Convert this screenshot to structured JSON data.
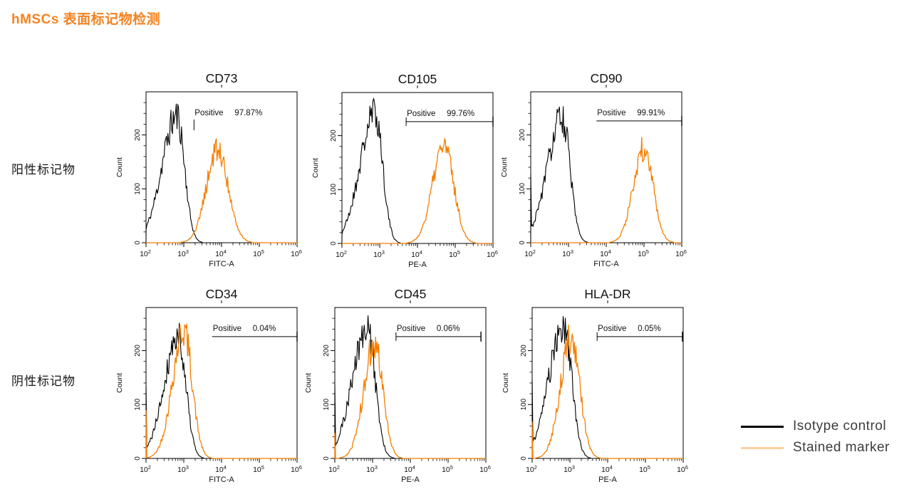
{
  "page_title": "hMSCs 表面标记物检测",
  "row_labels": {
    "positive": "阳性标记物",
    "negative": "阴性标记物"
  },
  "legend": {
    "items": [
      {
        "label": "Isotype control",
        "color": "#000000"
      },
      {
        "label": "Stained marker",
        "color": "#ffd0a1"
      }
    ]
  },
  "colors": {
    "title_orange": "#f58220",
    "curve_orange": "#f57e00",
    "axis": "#000000"
  },
  "chart_data": [
    {
      "type": "line",
      "row": "positive",
      "title": "CD73",
      "xlabel": "FITC-A",
      "ylabel": "Count",
      "x_log_range": [
        2,
        6
      ],
      "x_tick_labels": [
        "10^2",
        "10^3",
        "10^4",
        "10^5",
        "10^6"
      ],
      "ylim": [
        0,
        280
      ],
      "yticks": [
        0,
        100,
        200
      ],
      "annotation": {
        "label": "Positive",
        "value": "97.87%"
      },
      "gate": {
        "from_log10": 3.27,
        "to_log10": 6.0,
        "count_y": 226,
        "line": false,
        "left_tick": true,
        "right_tick": false
      },
      "series": [
        {
          "name": "Isotype control",
          "color": "#000000",
          "peak_log10": 2.82,
          "sigma_left": 0.4,
          "sigma_right": 0.2,
          "peak_height": 235,
          "edge_spike": 24,
          "seed": 11
        },
        {
          "name": "Stained marker",
          "color": "#f57e00",
          "peak_log10": 3.9,
          "sigma_left": 0.3,
          "sigma_right": 0.28,
          "peak_height": 172,
          "edge_spike": 0,
          "seed": 12
        }
      ]
    },
    {
      "type": "line",
      "row": "positive",
      "title": "CD105",
      "xlabel": "PE-A",
      "ylabel": "Count",
      "x_log_range": [
        2,
        6
      ],
      "x_tick_labels": [
        "10^2",
        "10^3",
        "10^4",
        "10^5",
        "10^6"
      ],
      "ylim": [
        0,
        280
      ],
      "yticks": [
        0,
        100,
        200
      ],
      "annotation": {
        "label": "Positive",
        "value": "99.76%"
      },
      "gate": {
        "from_log10": 3.7,
        "to_log10": 6.0,
        "count_y": 226,
        "line": true,
        "left_tick": true,
        "right_tick": true
      },
      "series": [
        {
          "name": "Isotype control",
          "color": "#000000",
          "peak_log10": 2.88,
          "sigma_left": 0.4,
          "sigma_right": 0.2,
          "peak_height": 242,
          "edge_spike": 16,
          "seed": 21
        },
        {
          "name": "Stained marker",
          "color": "#f57e00",
          "peak_log10": 4.7,
          "sigma_left": 0.3,
          "sigma_right": 0.26,
          "peak_height": 182,
          "edge_spike": 0,
          "seed": 22
        }
      ]
    },
    {
      "type": "line",
      "row": "positive",
      "title": "CD90",
      "xlabel": "FITC-A",
      "ylabel": "Count",
      "x_log_range": [
        2,
        6
      ],
      "x_tick_labels": [
        "10^2",
        "10^3",
        "10^4",
        "10^5",
        "10^6"
      ],
      "ylim": [
        0,
        280
      ],
      "yticks": [
        0,
        100,
        200
      ],
      "annotation": {
        "label": "Positive",
        "value": "99.91%"
      },
      "gate": {
        "from_log10": 3.74,
        "to_log10": 6.0,
        "count_y": 226,
        "line": true,
        "left_tick": false,
        "right_tick": true
      },
      "series": [
        {
          "name": "Isotype control",
          "color": "#000000",
          "peak_log10": 2.84,
          "sigma_left": 0.4,
          "sigma_right": 0.2,
          "peak_height": 232,
          "edge_spike": 125,
          "seed": 31
        },
        {
          "name": "Stained marker",
          "color": "#f57e00",
          "peak_log10": 5.0,
          "sigma_left": 0.28,
          "sigma_right": 0.24,
          "peak_height": 176,
          "edge_spike": 0,
          "seed": 32
        }
      ]
    },
    {
      "type": "line",
      "row": "negative",
      "title": "CD34",
      "xlabel": "FITC-A",
      "ylabel": "Count",
      "x_log_range": [
        2,
        6
      ],
      "x_tick_labels": [
        "10^2",
        "10^3",
        "10^4",
        "10^5",
        "10^6"
      ],
      "ylim": [
        0,
        280
      ],
      "yticks": [
        0,
        100,
        200
      ],
      "annotation": {
        "label": "Positive",
        "value": "0.04%"
      },
      "gate": {
        "from_log10": 3.75,
        "to_log10": 6.0,
        "count_y": 226,
        "line": true,
        "left_tick": false,
        "right_tick": true
      },
      "series": [
        {
          "name": "Isotype control",
          "color": "#000000",
          "peak_log10": 2.86,
          "sigma_left": 0.38,
          "sigma_right": 0.2,
          "peak_height": 228,
          "edge_spike": 130,
          "seed": 41
        },
        {
          "name": "Stained marker",
          "color": "#f57e00",
          "peak_log10": 3.0,
          "sigma_left": 0.3,
          "sigma_right": 0.22,
          "peak_height": 238,
          "edge_spike": 88,
          "seed": 42
        }
      ]
    },
    {
      "type": "line",
      "row": "negative",
      "title": "CD45",
      "xlabel": "PE-A",
      "ylabel": "Count",
      "x_log_range": [
        2,
        6
      ],
      "x_tick_labels": [
        "10^2",
        "10^3",
        "10^4",
        "10^5",
        "10^6"
      ],
      "ylim": [
        0,
        280
      ],
      "yticks": [
        0,
        100,
        200
      ],
      "annotation": {
        "label": "Positive",
        "value": "0.06%"
      },
      "gate": {
        "from_log10": 3.62,
        "to_log10": 5.87,
        "count_y": 226,
        "line": true,
        "left_tick": true,
        "right_tick": true
      },
      "series": [
        {
          "name": "Isotype control",
          "color": "#000000",
          "peak_log10": 2.86,
          "sigma_left": 0.4,
          "sigma_right": 0.21,
          "peak_height": 240,
          "edge_spike": 142,
          "seed": 51
        },
        {
          "name": "Stained marker",
          "color": "#f57e00",
          "peak_log10": 3.05,
          "sigma_left": 0.28,
          "sigma_right": 0.22,
          "peak_height": 215,
          "edge_spike": 48,
          "seed": 52
        }
      ]
    },
    {
      "type": "line",
      "row": "negative",
      "title": "HLA-DR",
      "xlabel": "PE-A",
      "ylabel": "Count",
      "x_log_range": [
        2,
        6
      ],
      "x_tick_labels": [
        "10^2",
        "10^3",
        "10^4",
        "10^5",
        "10^6"
      ],
      "ylim": [
        0,
        280
      ],
      "yticks": [
        0,
        100,
        200
      ],
      "annotation": {
        "label": "Positive",
        "value": "0.05%"
      },
      "gate": {
        "from_log10": 3.72,
        "to_log10": 5.98,
        "count_y": 226,
        "line": true,
        "left_tick": true,
        "right_tick": true
      },
      "series": [
        {
          "name": "Isotype control",
          "color": "#000000",
          "peak_log10": 2.84,
          "sigma_left": 0.4,
          "sigma_right": 0.21,
          "peak_height": 245,
          "edge_spike": 146,
          "seed": 61
        },
        {
          "name": "Stained marker",
          "color": "#f57e00",
          "peak_log10": 3.03,
          "sigma_left": 0.28,
          "sigma_right": 0.23,
          "peak_height": 225,
          "edge_spike": 66,
          "seed": 62
        }
      ]
    }
  ]
}
